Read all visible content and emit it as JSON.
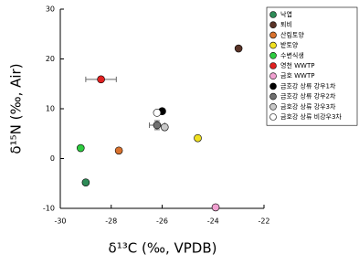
{
  "chart_data": {
    "type": "scatter",
    "x_label": "δ¹³C (‰, VPDB)",
    "y_label": "δ¹⁵N (‰, Air)",
    "xlim": [
      -30,
      -22
    ],
    "ylim": [
      -10,
      30
    ],
    "xticks": [
      -30,
      -28,
      -26,
      -24,
      -22
    ],
    "yticks": [
      -10,
      0,
      10,
      20,
      30
    ],
    "legend": "right",
    "series": [
      {
        "name": "낙엽",
        "color": "#2e8b57",
        "x": [
          -29.0
        ],
        "values": [
          -4.8
        ]
      },
      {
        "name": "퇴비",
        "color": "#5a3428",
        "x": [
          -23.0
        ],
        "values": [
          22.1
        ]
      },
      {
        "name": "산림토양",
        "color": "#d9722e",
        "x": [
          -27.7
        ],
        "values": [
          1.6
        ]
      },
      {
        "name": "밭토양",
        "color": "#f0e020",
        "x": [
          -24.6
        ],
        "values": [
          4.1
        ]
      },
      {
        "name": "수변식생",
        "color": "#2ecc40",
        "x": [
          -29.2
        ],
        "values": [
          2.1
        ]
      },
      {
        "name": "영천 WWTP",
        "color": "#e02020",
        "x": [
          -28.4
        ],
        "values": [
          15.9
        ],
        "xerr": [
          0.6
        ]
      },
      {
        "name": "금호 WWTP",
        "color": "#f0a0d0",
        "x": [
          -23.9
        ],
        "values": [
          -9.8
        ]
      },
      {
        "name": "금호강 상류 강우1차",
        "color": "#000000",
        "x": [
          -26.0
        ],
        "values": [
          9.5
        ]
      },
      {
        "name": "금호강 상류 강우2차",
        "color": "#707070",
        "x": [
          -26.2
        ],
        "values": [
          6.7
        ],
        "xerr": [
          0.3
        ],
        "yerr": [
          0.9
        ]
      },
      {
        "name": "금호강 상류 강우3차",
        "color": "#c8c8c8",
        "x": [
          -25.9
        ],
        "values": [
          6.3
        ]
      },
      {
        "name": "금호강 상류 비강우3차",
        "color": "#ffffff",
        "x": [
          -26.2
        ],
        "values": [
          9.2
        ]
      }
    ]
  }
}
